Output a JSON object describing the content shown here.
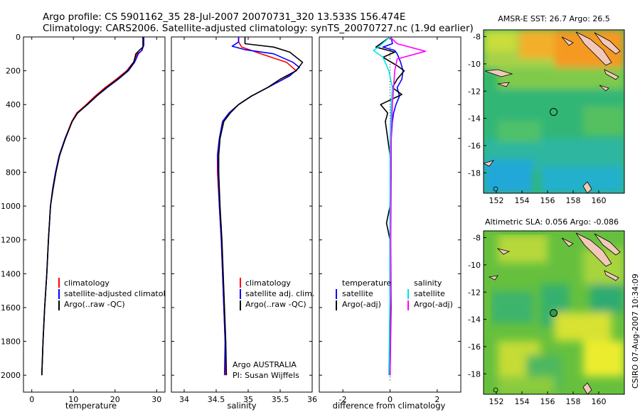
{
  "figure": {
    "title_line1": "Argo profile: CS 5901162_35 28-Jul-2007 20070731_320 13.533S 156.474E",
    "title_line2": "Climatology: CARS2006. Satellite-adjusted climatology: synTS_20070727.nc (1.9d earlier)",
    "side_text": "CSIRO 07-Aug-2007 10:34:09",
    "colors": {
      "red": "#ff0000",
      "blue": "#0000ff",
      "black": "#000000",
      "cyan": "#00e5e5",
      "magenta": "#ff00ff"
    }
  },
  "chart_data": [
    {
      "type": "line",
      "xlabel": "temperature",
      "xlim": [
        -2,
        32
      ],
      "xticks": [
        0,
        10,
        20,
        30
      ],
      "ylim": [
        0,
        2100
      ],
      "yticks": [
        0,
        200,
        400,
        600,
        800,
        1000,
        1200,
        1400,
        1600,
        1800,
        2000
      ],
      "y_reversed": true,
      "legend": [
        "climatology",
        "satellite-adjusted climatology",
        "Argo(..raw -QC)"
      ],
      "series": [
        {
          "name": "climatology",
          "color": "#ff0000",
          "points": [
            [
              26.8,
              0
            ],
            [
              26.8,
              50
            ],
            [
              26.5,
              80
            ],
            [
              25.3,
              100
            ],
            [
              24.4,
              150
            ],
            [
              22.8,
              200
            ],
            [
              20.3,
              250
            ],
            [
              17.6,
              300
            ],
            [
              15.2,
              350
            ],
            [
              13.1,
              400
            ],
            [
              10.8,
              450
            ],
            [
              9.6,
              500
            ],
            [
              8.0,
              600
            ],
            [
              6.6,
              700
            ],
            [
              5.7,
              800
            ],
            [
              5.0,
              900
            ],
            [
              4.5,
              1000
            ],
            [
              4.0,
              1200
            ],
            [
              3.6,
              1400
            ],
            [
              3.1,
              1600
            ],
            [
              2.7,
              1800
            ],
            [
              2.4,
              2000
            ]
          ]
        },
        {
          "name": "satellite-adjusted climatology",
          "color": "#0000ff",
          "points": [
            [
              26.9,
              0
            ],
            [
              26.9,
              50
            ],
            [
              26.4,
              80
            ],
            [
              25.6,
              100
            ],
            [
              24.7,
              150
            ],
            [
              23.2,
              200
            ],
            [
              20.8,
              250
            ],
            [
              18.1,
              300
            ],
            [
              15.6,
              350
            ],
            [
              13.4,
              400
            ],
            [
              11.0,
              450
            ],
            [
              9.7,
              500
            ],
            [
              8.0,
              600
            ],
            [
              6.6,
              700
            ],
            [
              5.7,
              800
            ],
            [
              5.0,
              900
            ],
            [
              4.5,
              1000
            ],
            [
              4.0,
              1200
            ],
            [
              3.6,
              1400
            ],
            [
              3.1,
              1600
            ],
            [
              2.7,
              1800
            ],
            [
              2.4,
              2000
            ]
          ]
        },
        {
          "name": "Argo(..raw -QC)",
          "color": "#000000",
          "points": [
            [
              26.7,
              0
            ],
            [
              26.7,
              60
            ],
            [
              25.8,
              80
            ],
            [
              25.0,
              100
            ],
            [
              24.5,
              150
            ],
            [
              23.0,
              200
            ],
            [
              20.6,
              250
            ],
            [
              17.9,
              300
            ],
            [
              15.5,
              350
            ],
            [
              13.3,
              400
            ],
            [
              11.0,
              450
            ],
            [
              9.7,
              500
            ],
            [
              8.1,
              600
            ],
            [
              6.7,
              700
            ],
            [
              5.8,
              800
            ],
            [
              5.1,
              900
            ],
            [
              4.5,
              1000
            ],
            [
              4.0,
              1200
            ],
            [
              3.6,
              1400
            ],
            [
              3.1,
              1600
            ],
            [
              2.7,
              1800
            ],
            [
              2.4,
              2000
            ]
          ]
        }
      ]
    },
    {
      "type": "line",
      "xlabel": "salinity",
      "xlim": [
        33.8,
        36
      ],
      "xticks": [
        34,
        34.5,
        35,
        35.5,
        36
      ],
      "ylim": [
        0,
        2100
      ],
      "y_reversed": true,
      "legend": [
        "climatology",
        "satellite adj. clim.",
        "Argo(..raw -QC)"
      ],
      "annotation": [
        "Argo AUSTRALIA",
        "PI: Susan Wijffels"
      ],
      "series": [
        {
          "name": "climatology",
          "color": "#ff0000",
          "points": [
            [
              34.85,
              0
            ],
            [
              34.85,
              30
            ],
            [
              34.9,
              60
            ],
            [
              35.2,
              100
            ],
            [
              35.6,
              150
            ],
            [
              35.75,
              200
            ],
            [
              35.55,
              250
            ],
            [
              35.3,
              300
            ],
            [
              35.05,
              350
            ],
            [
              34.85,
              400
            ],
            [
              34.7,
              450
            ],
            [
              34.6,
              500
            ],
            [
              34.55,
              600
            ],
            [
              34.52,
              700
            ],
            [
              34.52,
              800
            ],
            [
              34.55,
              1000
            ],
            [
              34.58,
              1200
            ],
            [
              34.6,
              1400
            ],
            [
              34.62,
              1600
            ],
            [
              34.64,
              1800
            ],
            [
              34.65,
              2000
            ]
          ]
        },
        {
          "name": "satellite adj. clim.",
          "color": "#0000ff",
          "points": [
            [
              34.85,
              0
            ],
            [
              34.85,
              30
            ],
            [
              34.75,
              55
            ],
            [
              34.95,
              75
            ],
            [
              35.4,
              100
            ],
            [
              35.7,
              150
            ],
            [
              35.8,
              180
            ],
            [
              35.65,
              230
            ],
            [
              35.3,
              300
            ],
            [
              35.05,
              350
            ],
            [
              34.85,
              400
            ],
            [
              34.7,
              450
            ],
            [
              34.6,
              500
            ],
            [
              34.55,
              600
            ],
            [
              34.52,
              700
            ],
            [
              34.53,
              800
            ],
            [
              34.55,
              1000
            ],
            [
              34.58,
              1200
            ],
            [
              34.6,
              1400
            ],
            [
              34.62,
              1600
            ],
            [
              34.64,
              1800
            ],
            [
              34.63,
              2000
            ]
          ]
        },
        {
          "name": "Argo(..raw -QC)",
          "color": "#000000",
          "points": [
            [
              34.95,
              0
            ],
            [
              34.95,
              40
            ],
            [
              35.4,
              60
            ],
            [
              35.65,
              90
            ],
            [
              35.85,
              150
            ],
            [
              35.75,
              200
            ],
            [
              35.5,
              250
            ],
            [
              35.3,
              300
            ],
            [
              35.05,
              350
            ],
            [
              34.85,
              400
            ],
            [
              34.72,
              450
            ],
            [
              34.62,
              500
            ],
            [
              34.56,
              600
            ],
            [
              34.54,
              700
            ],
            [
              34.54,
              800
            ],
            [
              34.56,
              1000
            ],
            [
              34.59,
              1200
            ],
            [
              34.61,
              1400
            ],
            [
              34.63,
              1600
            ],
            [
              34.65,
              1800
            ],
            [
              34.66,
              2000
            ]
          ]
        }
      ]
    },
    {
      "type": "line",
      "xlabel": "difference from climatology",
      "xlim": [
        -3,
        3
      ],
      "xticks": [
        -2,
        0,
        2
      ],
      "ylim": [
        0,
        2100
      ],
      "y_reversed": true,
      "legend_groups": [
        {
          "title": "temperature",
          "entries": [
            "satellite",
            "Argo(-adj)"
          ]
        },
        {
          "title": "salinity",
          "entries": [
            "satellite",
            "Argo(-adj)"
          ]
        }
      ],
      "series": [
        {
          "name": "temperature satellite",
          "color": "#0000ff",
          "points": [
            [
              0.05,
              0
            ],
            [
              0.1,
              40
            ],
            [
              -0.3,
              60
            ],
            [
              0.2,
              80
            ],
            [
              0.3,
              100
            ],
            [
              0.45,
              150
            ],
            [
              0.55,
              200
            ],
            [
              0.5,
              250
            ],
            [
              0.3,
              300
            ],
            [
              0.4,
              350
            ],
            [
              0.25,
              400
            ],
            [
              0.15,
              450
            ],
            [
              0.1,
              500
            ],
            [
              0.05,
              600
            ],
            [
              0.02,
              800
            ],
            [
              0.0,
              1000
            ],
            [
              0.0,
              1500
            ],
            [
              0.0,
              2000
            ]
          ]
        },
        {
          "name": "temperature Argo(-adj)",
          "color": "#000000",
          "points": [
            [
              0.0,
              0
            ],
            [
              -0.6,
              60
            ],
            [
              0.2,
              90
            ],
            [
              -0.3,
              120
            ],
            [
              0.3,
              170
            ],
            [
              0.6,
              200
            ],
            [
              0.3,
              250
            ],
            [
              0.1,
              300
            ],
            [
              0.5,
              340
            ],
            [
              -0.4,
              400
            ],
            [
              -0.1,
              450
            ],
            [
              -0.2,
              500
            ],
            [
              -0.1,
              600
            ],
            [
              0.0,
              700
            ],
            [
              0.05,
              800
            ],
            [
              0.0,
              1000
            ],
            [
              -0.15,
              1100
            ],
            [
              0.0,
              1200
            ],
            [
              0.0,
              1500
            ],
            [
              0.02,
              1800
            ],
            [
              0.0,
              2000
            ]
          ]
        },
        {
          "name": "salinity satellite",
          "color": "#00e5e5",
          "points": [
            [
              0.0,
              0
            ],
            [
              -0.5,
              60
            ],
            [
              -0.7,
              80
            ],
            [
              -0.3,
              120
            ],
            [
              -0.05,
              200
            ],
            [
              0.1,
              300
            ],
            [
              0.05,
              400
            ],
            [
              0.0,
              600
            ],
            [
              0.0,
              1000
            ],
            [
              0.0,
              1500
            ],
            [
              -0.05,
              2000
            ]
          ]
        },
        {
          "name": "salinity Argo(-adj)",
          "color": "#ff00ff",
          "points": [
            [
              0.0,
              0
            ],
            [
              0.3,
              40
            ],
            [
              1.5,
              85
            ],
            [
              0.3,
              130
            ],
            [
              0.2,
              200
            ],
            [
              0.15,
              300
            ],
            [
              0.1,
              400
            ],
            [
              0.05,
              600
            ],
            [
              0.05,
              800
            ],
            [
              0.03,
              1200
            ],
            [
              0.05,
              1600
            ],
            [
              0.0,
              2000
            ]
          ]
        }
      ]
    },
    {
      "type": "heatmap",
      "title": "AMSR-E SST: 26.7 Argo: 26.5",
      "xlim": [
        151,
        162
      ],
      "ylim": [
        -19.5,
        -7.5
      ],
      "xticks": [
        152,
        154,
        156,
        158,
        160
      ],
      "yticks": [
        -8,
        -10,
        -12,
        -14,
        -16,
        -18
      ],
      "marker": [
        156.474,
        -13.533
      ]
    },
    {
      "type": "heatmap",
      "title": "Altimetric SLA: 0.056 Argo: -0.086",
      "xlim": [
        151,
        162
      ],
      "ylim": [
        -19.5,
        -7.5
      ],
      "xticks": [
        152,
        154,
        156,
        158,
        160
      ],
      "yticks": [
        -8,
        -10,
        -12,
        -14,
        -16,
        -18
      ],
      "marker": [
        156.474,
        -13.533
      ]
    }
  ]
}
